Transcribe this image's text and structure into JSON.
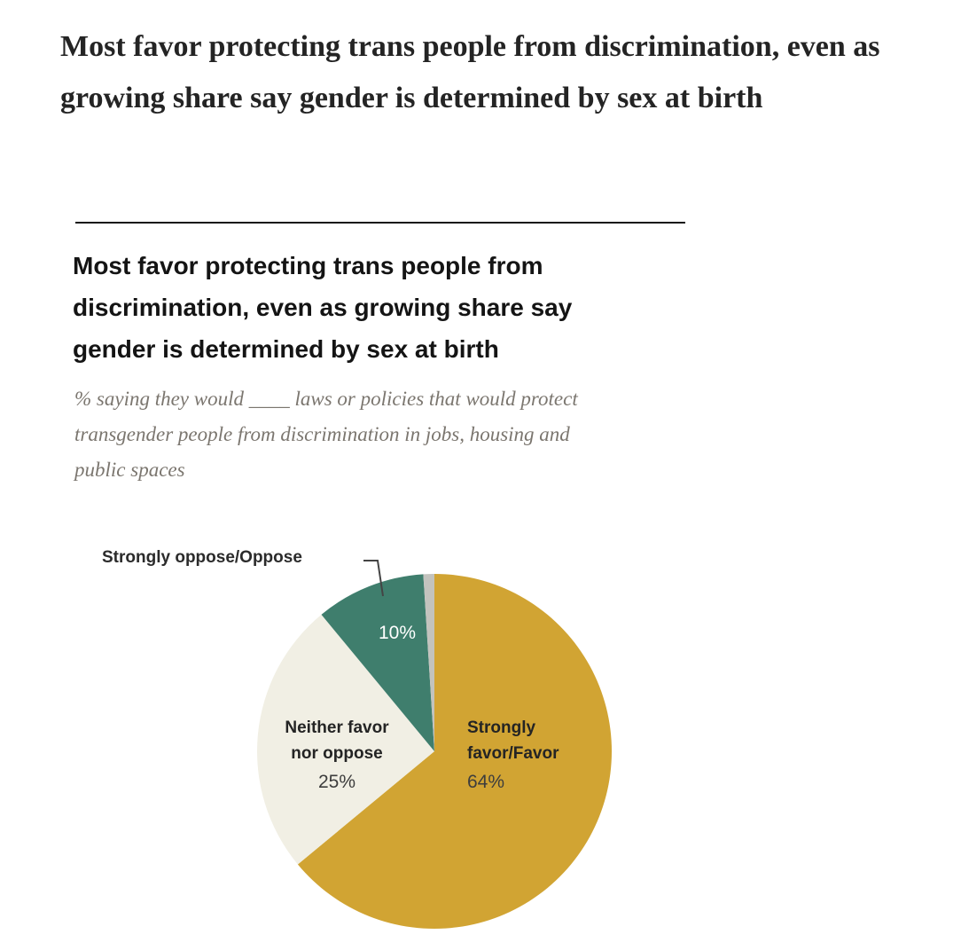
{
  "page": {
    "headline": "Most favor protecting trans people from discrimination, even as growing share say gender is determined by sex at birth"
  },
  "chart": {
    "title": "Most favor protecting trans people from discrimination, even as growing share say gender is determined by sex at birth",
    "subtitle": "% saying they would ____ laws or policies that would protect transgender people from discrimination in jobs, housing and public spaces"
  },
  "chart_data": {
    "type": "pie",
    "title": "Most favor protecting trans people from discrimination, even as growing share say gender is determined by sex at birth",
    "subtitle": "% saying they would ____ laws or policies that would protect transgender people from discrimination in jobs, housing and public spaces",
    "total": 100,
    "legend": "none",
    "label_style": "inside-and-callout",
    "slices": [
      {
        "label": "Strongly favor/Favor",
        "display_label": "Strongly\nfavor/Favor",
        "value": 64,
        "value_label": "64%",
        "color": "#d1a433"
      },
      {
        "label": "Neither favor nor oppose",
        "display_label": "Neither favor\nnor oppose",
        "value": 25,
        "value_label": "25%",
        "color": "#f1efe4"
      },
      {
        "label": "Strongly oppose/Oppose",
        "display_label": "Strongly oppose/Oppose",
        "value": 10,
        "value_label": "10%",
        "color": "#3f7e6d"
      },
      {
        "label": "",
        "display_label": "",
        "value": 1,
        "value_label": "",
        "color": "#c3c3be"
      }
    ],
    "colors": {
      "favor_gold": "#d1a433",
      "neither_cream": "#f1efe4",
      "oppose_green": "#3f7e6d",
      "sliver_gray": "#c3c3be",
      "leader_line": "#444444",
      "inside_value_text": "#ffffff",
      "label_text": "#242424",
      "value_text": "#3d3d3d",
      "subtitle_text": "#7b766f"
    }
  }
}
